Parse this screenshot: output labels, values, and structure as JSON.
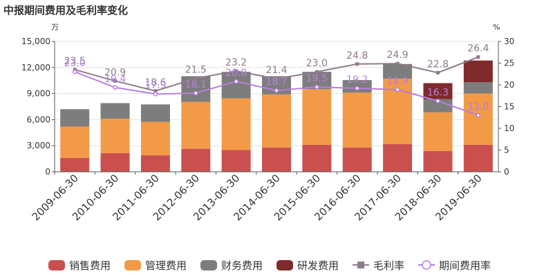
{
  "chart_data": {
    "type": "bar",
    "title": "中报期间费用及毛利率变化",
    "left_unit": "万",
    "right_unit": "%",
    "categories": [
      "2009-06-30",
      "2010-06-30",
      "2011-06-30",
      "2012-06-30",
      "2013-06-30",
      "2014-06-30",
      "2015-06-30",
      "2016-06-30",
      "2017-06-30",
      "2018-06-30",
      "2019-06-30"
    ],
    "y_left": {
      "min": 0,
      "max": 15000,
      "ticks": [
        "0",
        "3,000",
        "6,000",
        "9,000",
        "12,000",
        "15,000"
      ],
      "tick_values": [
        0,
        3000,
        6000,
        9000,
        12000,
        15000
      ]
    },
    "y_right": {
      "min": 0,
      "max": 30,
      "ticks": [
        "0",
        "5",
        "10",
        "15",
        "20",
        "25",
        "30"
      ],
      "tick_values": [
        0,
        5,
        10,
        15,
        20,
        25,
        30
      ]
    },
    "stacks": [
      {
        "name": "销售费用",
        "color": "#c9504f",
        "values": [
          1600,
          2150,
          1900,
          2650,
          2500,
          2800,
          3100,
          2800,
          3200,
          2400,
          3100
        ]
      },
      {
        "name": "管理费用",
        "color": "#f39a48",
        "values": [
          3600,
          3950,
          3850,
          5400,
          5950,
          6100,
          6400,
          6300,
          7500,
          4450,
          5900
        ]
      },
      {
        "name": "财务费用",
        "color": "#7d7d7d",
        "values": [
          2000,
          1800,
          2000,
          2950,
          3050,
          2100,
          2000,
          1450,
          1700,
          1500,
          1300
        ]
      },
      {
        "name": "研发费用",
        "color": "#7f2a2b",
        "values": [
          0,
          0,
          0,
          0,
          0,
          0,
          0,
          0,
          0,
          1850,
          2500
        ]
      }
    ],
    "lines": [
      {
        "name": "毛利率",
        "color": "#8e7b8c",
        "marker": "square",
        "values": [
          23.5,
          20.9,
          18.6,
          21.5,
          23.2,
          21.4,
          23.0,
          24.8,
          24.9,
          22.8,
          26.4
        ],
        "labels": [
          "23.5",
          "20.9",
          "18.6",
          "21.5",
          "23.2",
          "21.4",
          "23.0",
          "24.8",
          "24.9",
          "22.8",
          "26.4"
        ]
      },
      {
        "name": "期间费用率",
        "color": "#b77ee0",
        "marker": "circle",
        "values": [
          23.0,
          19.4,
          17.9,
          18.1,
          20.8,
          18.7,
          19.5,
          19.2,
          18.9,
          16.3,
          13.0
        ],
        "labels": [
          "23.0",
          "19.4",
          "17.9",
          "18.1",
          "20.8",
          "18.7",
          "19.5",
          "19.2",
          "18.9",
          "16.3",
          "13.0"
        ]
      }
    ],
    "legend": {
      "placement": "bottom"
    }
  }
}
